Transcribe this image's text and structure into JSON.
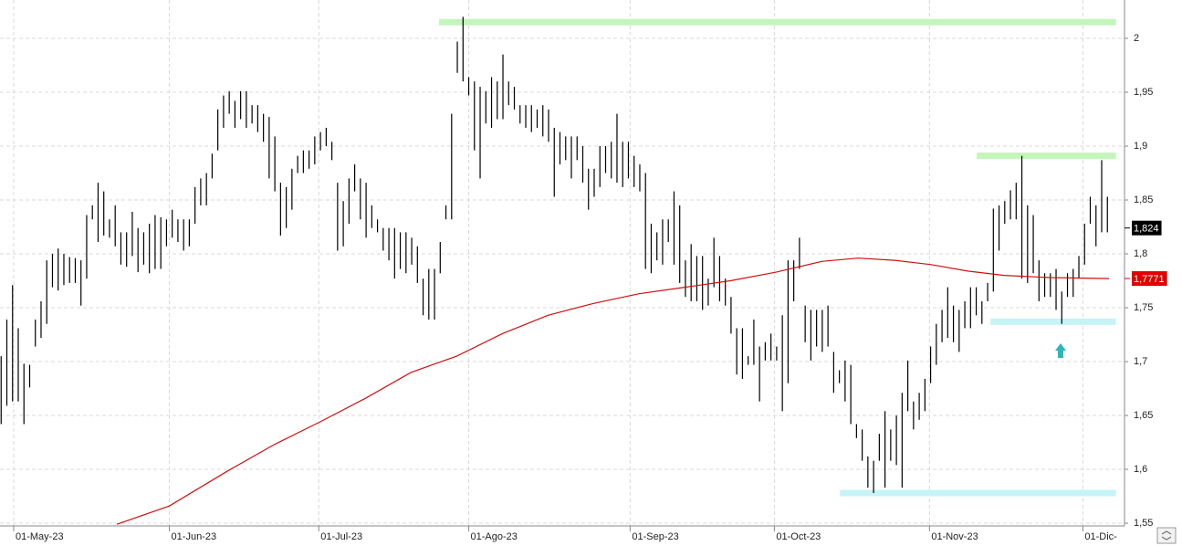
{
  "chart_data": {
    "type": "ohlc",
    "color": "#000000",
    "grid": true,
    "xlim": [
      -0.2,
      197
    ],
    "ylim": [
      1.5475,
      2.0356
    ],
    "yticks": [
      {
        "value": 1.55,
        "label": "1,55"
      },
      {
        "value": 1.6,
        "label": "1,6"
      },
      {
        "value": 1.65,
        "label": "1,65"
      },
      {
        "value": 1.7,
        "label": "1,7"
      },
      {
        "value": 1.75,
        "label": "1,75"
      },
      {
        "value": 1.8,
        "label": "1,8"
      },
      {
        "value": 1.85,
        "label": "1,85"
      },
      {
        "value": 1.9,
        "label": "1,9"
      },
      {
        "value": 1.95,
        "label": "1,95"
      },
      2
    ],
    "xticks": [
      {
        "value": 2.2,
        "label": "01-May-23"
      },
      {
        "value": 29.5,
        "label": "01-Jun-23"
      },
      {
        "value": 55.7,
        "label": "01-Jul-23"
      },
      {
        "value": 82,
        "label": "01-Ago-23"
      },
      {
        "value": 110.3,
        "label": "01-Sep-23"
      },
      {
        "value": 135.6,
        "label": "01-Oct-23"
      },
      {
        "value": 162.8,
        "label": "01-Nov-23"
      },
      {
        "value": 189.7,
        "label": "01-Dic-"
      }
    ],
    "high": [
      1.705,
      1.739,
      1.771,
      1.731,
      1.698,
      1.697,
      1.739,
      1.756,
      1.794,
      1.8,
      1.805,
      1.8,
      1.797,
      1.796,
      1.794,
      1.836,
      1.845,
      1.866,
      1.858,
      1.832,
      1.845,
      1.82,
      1.82,
      1.839,
      1.824,
      1.82,
      1.828,
      1.836,
      1.834,
      1.832,
      1.841,
      1.832,
      1.832,
      1.832,
      1.862,
      1.87,
      1.875,
      1.893,
      1.934,
      1.947,
      1.951,
      1.942,
      1.951,
      1.951,
      1.938,
      1.938,
      1.93,
      1.927,
      1.909,
      1.866,
      1.862,
      1.879,
      1.891,
      1.896,
      1.896,
      1.909,
      1.913,
      1.917,
      1.904,
      1.866,
      1.849,
      1.87,
      1.883,
      1.87,
      1.866,
      1.845,
      1.832,
      1.824,
      1.824,
      1.824,
      1.82,
      1.82,
      1.815,
      1.807,
      1.777,
      1.786,
      1.786,
      1.811,
      1.845,
      1.93,
      1.997,
      2.02,
      1.964,
      1.96,
      1.955,
      1.951,
      1.964,
      1.96,
      1.985,
      1.96,
      1.955,
      1.938,
      1.938,
      1.938,
      1.934,
      1.938,
      1.934,
      1.917,
      1.913,
      1.909,
      1.909,
      1.909,
      1.9,
      1.879,
      1.879,
      1.9,
      1.9,
      1.904,
      1.93,
      1.904,
      1.904,
      1.891,
      1.883,
      1.875,
      1.828,
      1.82,
      1.832,
      1.832,
      1.858,
      1.845,
      1.794,
      1.809,
      1.798,
      1.798,
      1.777,
      1.815,
      1.798,
      1.777,
      1.76,
      1.731,
      1.731,
      1.705,
      1.739,
      1.714,
      1.718,
      1.726,
      1.714,
      1.743,
      1.794,
      1.794,
      1.815,
      1.752,
      1.748,
      1.748,
      1.748,
      1.752,
      1.709,
      1.692,
      1.701,
      1.697,
      1.642,
      1.637,
      1.612,
      1.608,
      1.633,
      1.654,
      1.637,
      1.65,
      1.671,
      1.701,
      1.663,
      1.671,
      1.684,
      1.714,
      1.735,
      1.748,
      1.769,
      1.752,
      1.748,
      1.756,
      1.769,
      1.769,
      1.756,
      1.773,
      1.842,
      1.845,
      1.849,
      1.859,
      1.866,
      1.891,
      1.845,
      1.836,
      1.794,
      1.782,
      1.782,
      1.786,
      1.765,
      1.782,
      1.786,
      1.798,
      1.828,
      1.853,
      1.845,
      1.887,
      1.853
    ],
    "low": [
      1.642,
      1.659,
      1.663,
      1.663,
      1.642,
      1.676,
      1.714,
      1.722,
      1.735,
      1.769,
      1.766,
      1.771,
      1.773,
      1.773,
      1.752,
      1.777,
      1.832,
      1.811,
      1.817,
      1.815,
      1.807,
      1.79,
      1.788,
      1.798,
      1.783,
      1.79,
      1.782,
      1.786,
      1.786,
      1.807,
      1.815,
      1.811,
      1.803,
      1.807,
      1.828,
      1.845,
      1.845,
      1.87,
      1.896,
      1.917,
      1.93,
      1.917,
      1.925,
      1.917,
      1.921,
      1.913,
      1.904,
      1.87,
      1.858,
      1.817,
      1.824,
      1.841,
      1.875,
      1.875,
      1.879,
      1.883,
      1.896,
      1.9,
      1.887,
      1.803,
      1.807,
      1.828,
      1.858,
      1.832,
      1.815,
      1.824,
      1.82,
      1.803,
      1.794,
      1.777,
      1.786,
      1.782,
      1.79,
      1.773,
      1.743,
      1.739,
      1.739,
      1.782,
      1.832,
      1.832,
      1.968,
      1.96,
      1.947,
      1.896,
      1.87,
      1.921,
      1.917,
      1.925,
      1.925,
      1.938,
      1.934,
      1.921,
      1.917,
      1.913,
      1.917,
      1.909,
      1.904,
      1.853,
      1.883,
      1.887,
      1.87,
      1.887,
      1.866,
      1.841,
      1.853,
      1.862,
      1.875,
      1.87,
      1.866,
      1.862,
      1.87,
      1.862,
      1.858,
      1.786,
      1.782,
      1.794,
      1.79,
      1.811,
      1.79,
      1.773,
      1.76,
      1.756,
      1.756,
      1.748,
      1.752,
      1.769,
      1.756,
      1.752,
      1.726,
      1.688,
      1.684,
      1.697,
      1.697,
      1.663,
      1.701,
      1.701,
      1.701,
      1.654,
      1.68,
      1.756,
      1.786,
      1.718,
      1.701,
      1.714,
      1.709,
      1.714,
      1.671,
      1.68,
      1.663,
      1.642,
      1.629,
      1.608,
      1.583,
      1.578,
      1.608,
      1.583,
      1.608,
      1.604,
      1.583,
      1.654,
      1.637,
      1.646,
      1.654,
      1.68,
      1.697,
      1.718,
      1.722,
      1.718,
      1.709,
      1.731,
      1.731,
      1.743,
      1.735,
      1.756,
      1.765,
      1.803,
      1.828,
      1.832,
      1.832,
      1.777,
      1.773,
      1.782,
      1.756,
      1.76,
      1.76,
      1.748,
      1.735,
      1.76,
      1.76,
      1.777,
      1.79,
      1.828,
      1.807,
      1.82,
      1.82
    ],
    "ma": {
      "color": "#d01010",
      "x": [
        20.3,
        29.5,
        39.9,
        47.9,
        55.9,
        63.9,
        71.9,
        79.9,
        87.9,
        95.9,
        103.9,
        111.9,
        119.9,
        127.9,
        135.9,
        143.9,
        150.3,
        156.7,
        163.1,
        169.5,
        175.9,
        183.9,
        194.3
      ],
      "values": [
        1.549,
        1.566,
        1.599,
        1.623,
        1.644,
        1.666,
        1.69,
        1.705,
        1.726,
        1.743,
        1.754,
        1.763,
        1.769,
        1.775,
        1.783,
        1.793,
        1.796,
        1.794,
        1.79,
        1.784,
        1.78,
        1.778,
        1.7771
      ]
    },
    "levels": [
      {
        "value": 2.015,
        "x": [
          76.8,
          195.5
        ],
        "color": "#c4f5bc"
      },
      {
        "value": 1.891,
        "x": [
          171.1,
          195.5
        ],
        "color": "#c4f5bc"
      },
      {
        "value": 1.737,
        "x": [
          173.5,
          195.5
        ],
        "color": "#c6f3f6"
      },
      {
        "value": 1.578,
        "x": [
          147.1,
          195.5
        ],
        "color": "#c6f3f6"
      }
    ],
    "last_price": {
      "value": 1.824,
      "label": "1,824",
      "color": "#000000"
    },
    "ma_price": {
      "value": 1.7771,
      "label": "1,7771",
      "color": "#e00000"
    }
  }
}
